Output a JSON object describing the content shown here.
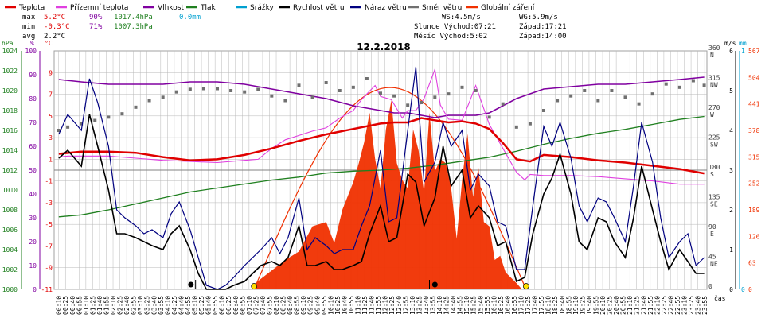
{
  "legend": [
    {
      "label": "Teplota",
      "color": "#e00000"
    },
    {
      "label": "Přízemní teplota",
      "color": "#e040e0"
    },
    {
      "label": "Vlhkost",
      "color": "#8000a0"
    },
    {
      "label": "Tlak",
      "color": "#208020"
    },
    {
      "label": "Srážky",
      "color": "#00a0d0"
    },
    {
      "label": "Rychlost větru",
      "color": "#000000"
    },
    {
      "label": "Náraz větru",
      "color": "#000080"
    },
    {
      "label": "Směr větru",
      "color": "#707070"
    },
    {
      "label": "Globální záření",
      "color": "#f03000"
    }
  ],
  "stats": {
    "max_label": "max",
    "min_label": "min",
    "avg_label": "avg",
    "max_temp": "5.2°C",
    "max_hum": "90%",
    "max_press": "1017.4hPa",
    "max_rain": "0.0mm",
    "min_temp": "-0.3°C",
    "min_hum": "71%",
    "min_press": "1007.3hPa",
    "avg_temp": "2.2°C",
    "ws": "WS:4.5m/s",
    "wg": "WG:5.9m/s",
    "sun": "Slunce Východ:07:21",
    "sun_set": "Západ:17:21",
    "moon": "Měsíc  Východ:5:02",
    "moon_set": "Západ:14:00"
  },
  "colors": {
    "temp": "#e00000",
    "ground": "#e040e0",
    "hum": "#8000a0",
    "press": "#208020",
    "rain": "#00a0d0",
    "wind": "#000000",
    "gust": "#000080",
    "dir": "#707070",
    "rad": "#f03000",
    "grid": "#b8b8b8",
    "zero": "#808080"
  },
  "chart_data": {
    "type": "line",
    "title": "12.2.2018",
    "x_unit_label": "čas",
    "x_ticks": [
      "00:10",
      "00:25",
      "00:40",
      "00:55",
      "01:10",
      "01:25",
      "01:40",
      "01:55",
      "02:10",
      "02:25",
      "02:40",
      "02:55",
      "03:10",
      "03:25",
      "03:40",
      "03:55",
      "04:10",
      "04:25",
      "04:40",
      "04:55",
      "05:10",
      "05:25",
      "05:40",
      "05:55",
      "06:10",
      "06:25",
      "06:40",
      "06:55",
      "07:10",
      "07:25",
      "07:40",
      "07:55",
      "08:10",
      "08:25",
      "08:40",
      "08:55",
      "09:10",
      "09:25",
      "09:40",
      "09:55",
      "10:10",
      "10:25",
      "10:40",
      "10:55",
      "11:10",
      "11:25",
      "11:40",
      "11:55",
      "12:10",
      "12:25",
      "12:40",
      "12:55",
      "13:10",
      "13:25",
      "13:40",
      "13:55",
      "14:10",
      "14:25",
      "14:40",
      "14:55",
      "15:10",
      "15:25",
      "15:40",
      "15:55",
      "16:10",
      "16:25",
      "16:40",
      "16:55",
      "17:10",
      "17:25",
      "17:40",
      "17:55",
      "18:10",
      "18:25",
      "18:40",
      "18:55",
      "19:10",
      "19:25",
      "19:40",
      "19:55",
      "20:10",
      "20:25",
      "20:40",
      "20:55",
      "21:10",
      "21:25",
      "21:40",
      "21:55",
      "22:10",
      "22:25",
      "22:40",
      "22:55",
      "23:10",
      "23:25",
      "23:40",
      "23:55"
    ],
    "axes": {
      "hpa": {
        "label": "hPa",
        "range": [
          1000,
          1024
        ],
        "ticks": [
          1000,
          1002,
          1004,
          1006,
          1008,
          1010,
          1012,
          1014,
          1016,
          1018,
          1020,
          1022,
          1024
        ]
      },
      "hum": {
        "label": "%",
        "range": [
          0,
          100
        ],
        "ticks": [
          0,
          10,
          20,
          30,
          40,
          50,
          60,
          70,
          80,
          90,
          100
        ]
      },
      "temp": {
        "label": "°C",
        "range": [
          -11,
          11
        ],
        "ticks": [
          -11,
          -9,
          -7,
          -5,
          -3,
          -1,
          1,
          3,
          5,
          7,
          9
        ]
      },
      "dir": {
        "range": [
          0,
          360
        ],
        "ticks": [
          0,
          45,
          90,
          135,
          180,
          225,
          270,
          315,
          360
        ],
        "names": [
          "",
          "NE",
          "E",
          "SE",
          "S",
          "SW",
          "W",
          "NW",
          "N"
        ]
      },
      "ms": {
        "label": "m/s",
        "range": [
          0,
          6
        ],
        "ticks": [
          0,
          1,
          2,
          3,
          4,
          5,
          6
        ]
      },
      "mm": {
        "label": "mm",
        "range": [
          0,
          1
        ],
        "ticks": [
          0,
          1
        ]
      },
      "rad": {
        "range": [
          0,
          567
        ],
        "ticks": [
          0,
          63,
          126,
          189,
          252,
          315,
          378,
          441,
          504,
          567
        ]
      }
    },
    "series": [
      {
        "name": "Teplota",
        "unit": "°C",
        "t": [
          0.17,
          1,
          2,
          3,
          4,
          5,
          6,
          7,
          8,
          9,
          10,
          11,
          12,
          12.5,
          13,
          13.5,
          14,
          14.5,
          15,
          15.5,
          16,
          16.5,
          17,
          17.5,
          18,
          19,
          20,
          21,
          22,
          23,
          23.9
        ],
        "values": [
          1.5,
          1.7,
          1.7,
          1.6,
          1.2,
          0.9,
          1.0,
          1.4,
          2.0,
          2.7,
          3.3,
          3.8,
          4.3,
          4.4,
          4.4,
          4.8,
          4.6,
          4.4,
          4.5,
          4.3,
          3.8,
          2.5,
          1.0,
          0.8,
          1.4,
          1.2,
          0.9,
          0.7,
          0.4,
          0.1,
          -0.3
        ]
      },
      {
        "name": "Přízemní teplota",
        "unit": "°C",
        "t": [
          0.17,
          0.5,
          1,
          2,
          3,
          4,
          5,
          6,
          7,
          7.5,
          8,
          8.5,
          9,
          9.5,
          10,
          10.5,
          11,
          11.3,
          11.6,
          11.8,
          12,
          12.4,
          12.8,
          13,
          13.3,
          13.6,
          14,
          14.2,
          14.5,
          15,
          15.3,
          15.5,
          16,
          16.5,
          17,
          17.3,
          17.5,
          18,
          19,
          20,
          21,
          22,
          23,
          23.9
        ],
        "values": [
          1.2,
          1.3,
          1.3,
          1.3,
          1.1,
          0.9,
          0.8,
          0.7,
          0.9,
          1.0,
          2.0,
          2.8,
          3.2,
          3.6,
          3.9,
          4.8,
          5.5,
          6.5,
          7.3,
          7.8,
          6.8,
          6.5,
          4.8,
          5.5,
          5.5,
          6.6,
          9.3,
          6.0,
          4.7,
          4.6,
          6.5,
          7.8,
          4.2,
          2.0,
          -0.2,
          -0.9,
          -0.4,
          -0.5,
          -0.5,
          -0.6,
          -0.8,
          -1.0,
          -1.3,
          -1.3
        ]
      },
      {
        "name": "Vlhkost",
        "unit": "%",
        "t": [
          0.17,
          1,
          2,
          3,
          4,
          5,
          6,
          7,
          8,
          9,
          10,
          11,
          12,
          12.5,
          13,
          13.5,
          14,
          14.5,
          15,
          15.5,
          16,
          16.5,
          17,
          18,
          19,
          20,
          21,
          22,
          23,
          23.9
        ],
        "values": [
          88,
          87,
          86,
          86,
          86,
          87,
          87,
          86,
          84,
          82,
          80,
          77,
          75,
          74,
          74,
          73,
          72,
          73,
          73,
          73,
          74,
          77,
          80,
          84,
          85,
          86,
          86,
          87,
          88,
          89
        ]
      },
      {
        "name": "Tlak",
        "unit": "hPa",
        "t": [
          0.17,
          1,
          2,
          3,
          4,
          5,
          6,
          7,
          8,
          9,
          10,
          11,
          12,
          13,
          14,
          15,
          16,
          17,
          18,
          19,
          20,
          21,
          22,
          23,
          23.9
        ],
        "values": [
          1007.3,
          1007.5,
          1008.0,
          1008.6,
          1009.2,
          1009.8,
          1010.2,
          1010.6,
          1011.0,
          1011.3,
          1011.7,
          1011.9,
          1012.0,
          1012.2,
          1012.5,
          1012.9,
          1013.3,
          1013.9,
          1014.6,
          1015.2,
          1015.7,
          1016.1,
          1016.6,
          1017.1,
          1017.4
        ]
      },
      {
        "name": "Rychlost větru",
        "unit": "m/s",
        "t": [
          0.17,
          0.5,
          1,
          1.3,
          1.6,
          2,
          2.3,
          2.6,
          3,
          3.3,
          3.6,
          4,
          4.3,
          4.6,
          5,
          5.3,
          5.6,
          6,
          6.3,
          6.6,
          7,
          7.3,
          7.6,
          8,
          8.3,
          8.6,
          9,
          9.3,
          9.6,
          10,
          10.3,
          10.6,
          11,
          11.3,
          11.6,
          12,
          12.3,
          12.6,
          13,
          13.3,
          13.6,
          14,
          14.3,
          14.6,
          15,
          15.3,
          15.6,
          16,
          16.3,
          16.6,
          17,
          17.3,
          17.6,
          18,
          18.3,
          18.6,
          19,
          19.3,
          19.6,
          20,
          20.3,
          20.6,
          21,
          21.3,
          21.6,
          22,
          22.3,
          22.6,
          23,
          23.3,
          23.6,
          23.9
        ],
        "values": [
          3.3,
          3.5,
          3.1,
          4.4,
          3.6,
          2.5,
          1.4,
          1.4,
          1.3,
          1.2,
          1.1,
          1.0,
          1.4,
          1.6,
          1.0,
          0.4,
          0.0,
          0.0,
          0.0,
          0.1,
          0.2,
          0.4,
          0.6,
          0.7,
          0.6,
          0.8,
          1.6,
          0.6,
          0.6,
          0.7,
          0.5,
          0.5,
          0.6,
          0.7,
          1.4,
          2.1,
          1.2,
          1.3,
          2.9,
          2.7,
          1.6,
          2.3,
          3.6,
          2.6,
          3.0,
          1.8,
          2.1,
          1.8,
          1.1,
          1.2,
          0.2,
          0.3,
          1.4,
          2.4,
          2.8,
          3.4,
          2.4,
          1.2,
          1.0,
          1.8,
          1.7,
          1.2,
          0.8,
          1.8,
          3.1,
          2.0,
          1.2,
          0.5,
          1.0,
          0.7,
          0.4,
          0.4
        ]
      },
      {
        "name": "Náraz větru",
        "unit": "m/s",
        "t": [
          0.17,
          0.5,
          1,
          1.3,
          1.6,
          2,
          2.3,
          2.6,
          3,
          3.3,
          3.6,
          4,
          4.3,
          4.6,
          5,
          5.3,
          5.6,
          6,
          6.3,
          6.6,
          7,
          7.3,
          7.6,
          8,
          8.3,
          8.6,
          9,
          9.3,
          9.6,
          10,
          10.3,
          10.6,
          11,
          11.3,
          11.6,
          12,
          12.3,
          12.6,
          13,
          13.3,
          13.6,
          14,
          14.3,
          14.6,
          15,
          15.3,
          15.6,
          16,
          16.3,
          16.6,
          17,
          17.3,
          17.6,
          18,
          18.3,
          18.6,
          19,
          19.3,
          19.6,
          20,
          20.3,
          20.6,
          21,
          21.3,
          21.6,
          22,
          22.3,
          22.6,
          23,
          23.3,
          23.6,
          23.9
        ],
        "values": [
          3.9,
          4.4,
          4.0,
          5.3,
          4.7,
          3.6,
          2.0,
          1.8,
          1.6,
          1.4,
          1.5,
          1.3,
          1.9,
          2.2,
          1.5,
          0.8,
          0.1,
          0.0,
          0.1,
          0.3,
          0.6,
          0.8,
          1.0,
          1.3,
          0.9,
          1.3,
          2.3,
          1.0,
          1.3,
          1.1,
          0.9,
          1.0,
          1.0,
          1.6,
          2.1,
          3.5,
          1.7,
          1.8,
          4.0,
          5.6,
          2.7,
          3.2,
          4.2,
          3.6,
          4.0,
          2.5,
          2.9,
          2.6,
          1.7,
          1.6,
          0.5,
          0.5,
          2.1,
          4.1,
          3.6,
          4.2,
          3.3,
          2.1,
          1.7,
          2.3,
          2.2,
          1.8,
          1.2,
          2.6,
          4.2,
          3.2,
          1.8,
          0.8,
          1.2,
          1.4,
          0.6,
          0.8
        ]
      },
      {
        "name": "Směr větru",
        "unit": "°",
        "t": [
          0.17,
          0.5,
          1,
          1.5,
          2,
          2.5,
          3,
          3.5,
          4,
          4.5,
          5,
          5.5,
          6,
          6.5,
          7,
          7.5,
          8,
          8.5,
          9,
          9.5,
          10,
          10.5,
          11,
          11.5,
          12,
          12.5,
          13,
          13.5,
          14,
          14.5,
          15,
          15.5,
          16,
          16.5,
          17,
          17.5,
          18,
          18.5,
          19,
          19.5,
          20,
          20.5,
          21,
          21.5,
          22,
          22.5,
          23,
          23.5,
          23.9
        ],
        "values": [
          240,
          245,
          250,
          255,
          260,
          265,
          275,
          285,
          290,
          298,
          302,
          303,
          303,
          300,
          298,
          302,
          292,
          285,
          308,
          290,
          312,
          300,
          305,
          318,
          296,
          292,
          278,
          282,
          290,
          295,
          305,
          300,
          260,
          280,
          245,
          250,
          270,
          285,
          292,
          300,
          285,
          300,
          290,
          280,
          295,
          310,
          305,
          315,
          308
        ]
      },
      {
        "name": "Globální záření",
        "unit": "W/m²",
        "t": [
          7.3,
          7.5,
          8,
          8.5,
          9,
          9.5,
          10,
          10.3,
          10.6,
          11,
          11.2,
          11.4,
          11.6,
          11.8,
          12,
          12.2,
          12.4,
          12.6,
          12.8,
          13,
          13.2,
          13.4,
          13.6,
          13.8,
          14,
          14.2,
          14.4,
          14.6,
          14.8,
          15,
          15.2,
          15.4,
          15.6,
          15.8,
          16,
          16.2,
          16.4,
          16.6,
          17,
          17.2
        ],
        "values": [
          0,
          20,
          45,
          70,
          90,
          150,
          160,
          110,
          190,
          255,
          300,
          350,
          420,
          310,
          240,
          380,
          450,
          300,
          260,
          240,
          380,
          330,
          230,
          420,
          280,
          310,
          300,
          240,
          120,
          260,
          370,
          220,
          290,
          160,
          150,
          70,
          80,
          40,
          15,
          0
        ]
      }
    ],
    "radiation_model": {
      "name": "Globální záření",
      "sunrise": 7.35,
      "sunset": 17.35,
      "peak": 480
    }
  }
}
